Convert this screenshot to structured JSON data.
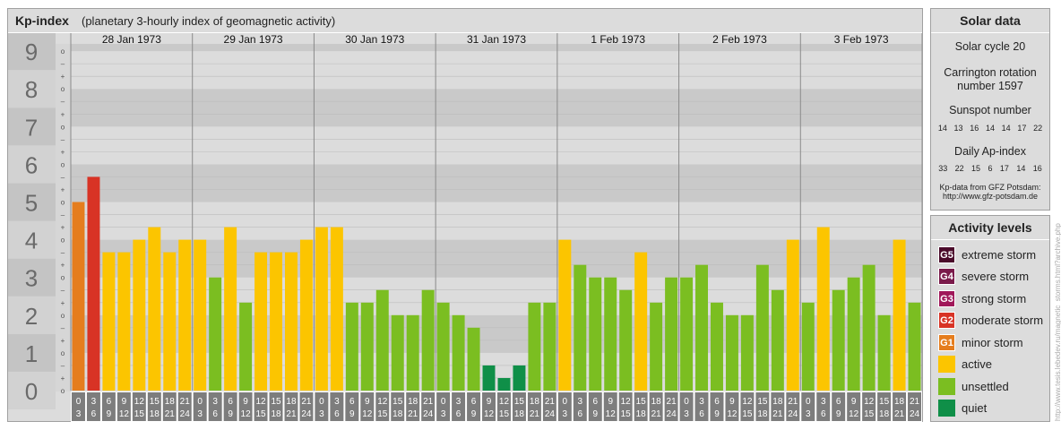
{
  "header": {
    "title": "Kp-index",
    "subtitle": "(planetary 3-hourly index of geomagnetic activity)"
  },
  "solar": {
    "title": "Solar data",
    "cycle": "Solar cycle 20",
    "carrington_line1": "Carrington rotation",
    "carrington_line2": "number 1597",
    "sunspot_label": "Sunspot number",
    "sunspot_values": [
      "14",
      "13",
      "16",
      "14",
      "14",
      "17",
      "22"
    ],
    "ap_label": "Daily Ap-index",
    "ap_values": [
      "33",
      "22",
      "15",
      "6",
      "17",
      "14",
      "16"
    ],
    "source_line1": "Kp-data from GFZ Potsdam:",
    "source_line2": "http://www.gfz-potsdam.de"
  },
  "levels": {
    "title": "Activity levels",
    "items": [
      {
        "badge": "G5",
        "label": "extreme storm",
        "color": "#4a0a2a"
      },
      {
        "badge": "G4",
        "label": "severe storm",
        "color": "#7a1a4a"
      },
      {
        "badge": "G3",
        "label": "strong storm",
        "color": "#a0185a"
      },
      {
        "badge": "G2",
        "label": "moderate storm",
        "color": "#d83325"
      },
      {
        "badge": "G1",
        "label": "minor storm",
        "color": "#e57d1e"
      },
      {
        "badge": "",
        "label": "active",
        "color": "#fcc500"
      },
      {
        "badge": "",
        "label": "unsettled",
        "color": "#7bbe21"
      },
      {
        "badge": "",
        "label": "quiet",
        "color": "#0f8f48"
      }
    ]
  },
  "watermark": "http://www.tesis.lebedev.ru/magnetic_storms.html?archive.php",
  "chart_data": {
    "type": "bar",
    "title": "Kp-index",
    "days": [
      "28 Jan 1973",
      "29 Jan 1973",
      "30 Jan 1973",
      "31 Jan 1973",
      "1 Feb 1973",
      "2 Feb 1973",
      "3 Feb 1973"
    ],
    "hour_starts": [
      "0",
      "3",
      "6",
      "9",
      "12",
      "15",
      "18",
      "21"
    ],
    "hour_ends": [
      "3",
      "6",
      "9",
      "12",
      "15",
      "18",
      "21",
      "24"
    ],
    "yticks": [
      "0",
      "1",
      "2",
      "3",
      "4",
      "5",
      "6",
      "7",
      "8",
      "9"
    ],
    "ylim": [
      0,
      9
    ],
    "values": [
      5.0,
      5.667,
      3.667,
      3.667,
      4.0,
      4.333,
      3.667,
      4.0,
      4.0,
      3.0,
      4.333,
      2.333,
      3.667,
      3.667,
      3.667,
      4.0,
      4.333,
      4.333,
      2.333,
      2.333,
      2.667,
      2.0,
      2.0,
      2.667,
      2.333,
      2.0,
      1.667,
      0.667,
      0.333,
      0.667,
      2.333,
      2.333,
      4.0,
      3.333,
      3.0,
      3.0,
      2.667,
      3.667,
      2.333,
      3.0,
      3.0,
      3.333,
      2.333,
      2.0,
      2.0,
      3.333,
      2.667,
      4.0,
      2.333,
      4.333,
      2.667,
      3.0,
      3.333,
      2.0,
      4.0,
      2.333
    ],
    "level_colors": {
      "quiet": "#0f8f48",
      "unsettled": "#7bbe21",
      "active": "#fcc500",
      "G1": "#e57d1e",
      "G2": "#d83325"
    }
  }
}
